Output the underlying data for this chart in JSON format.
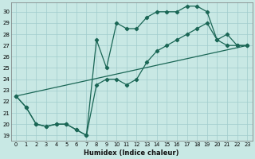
{
  "xlabel": "Humidex (Indice chaleur)",
  "xlim": [
    -0.5,
    23.5
  ],
  "ylim": [
    18.5,
    30.8
  ],
  "yticks": [
    19,
    20,
    21,
    22,
    23,
    24,
    25,
    26,
    27,
    28,
    29,
    30
  ],
  "xticks": [
    0,
    1,
    2,
    3,
    4,
    5,
    6,
    7,
    8,
    9,
    10,
    11,
    12,
    13,
    14,
    15,
    16,
    17,
    18,
    19,
    20,
    21,
    22,
    23
  ],
  "bg_color": "#c8e8e4",
  "grid_color": "#a0cccc",
  "line_color": "#1a6655",
  "series1_x": [
    0,
    1,
    2,
    3,
    4,
    5,
    6,
    7,
    8,
    9,
    10,
    11,
    12,
    13,
    14,
    15,
    16,
    17,
    18,
    19,
    20,
    21,
    22,
    23
  ],
  "series1_y": [
    22.5,
    21.5,
    20.0,
    19.8,
    20.0,
    20.0,
    19.5,
    19.0,
    27.5,
    25.0,
    29.0,
    28.5,
    28.5,
    29.5,
    30.0,
    30.0,
    30.0,
    30.5,
    30.5,
    30.0,
    27.5,
    28.0,
    27.0,
    27.0
  ],
  "series2_x": [
    0,
    1,
    2,
    3,
    4,
    5,
    6,
    7,
    8,
    9,
    10,
    11,
    12,
    13,
    14,
    15,
    16,
    17,
    18,
    19,
    20,
    21,
    22,
    23
  ],
  "series2_y": [
    22.5,
    21.5,
    20.0,
    19.8,
    20.0,
    20.0,
    19.5,
    19.0,
    23.5,
    24.0,
    24.0,
    23.5,
    24.0,
    25.5,
    26.5,
    27.0,
    27.5,
    28.0,
    28.5,
    29.0,
    27.5,
    27.0,
    27.0,
    27.0
  ],
  "series3_x": [
    0,
    23
  ],
  "series3_y": [
    22.5,
    27.0
  ]
}
